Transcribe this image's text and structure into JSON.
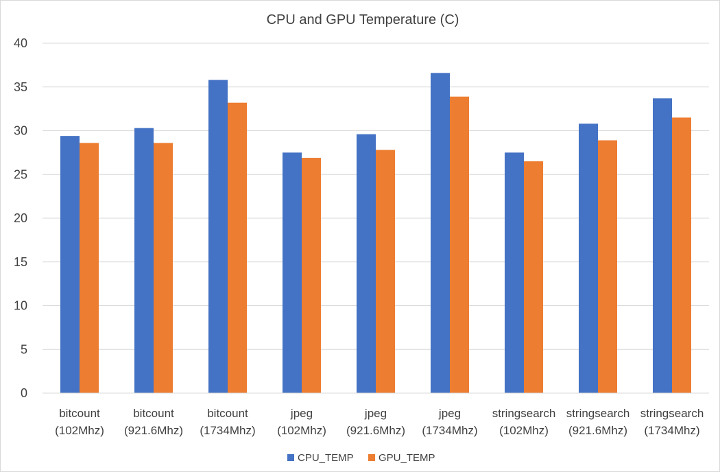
{
  "chart_data": {
    "type": "bar",
    "title": "CPU and GPU Temperature (C)",
    "categories": [
      [
        "bitcount",
        "(102Mhz)"
      ],
      [
        "bitcount",
        "(921.6Mhz)"
      ],
      [
        "bitcount",
        "(1734Mhz)"
      ],
      [
        "jpeg",
        "(102Mhz)"
      ],
      [
        "jpeg",
        "(921.6Mhz)"
      ],
      [
        "jpeg",
        "(1734Mhz)"
      ],
      [
        "stringsearch",
        "(102Mhz)"
      ],
      [
        "stringsearch",
        "(921.6Mhz)"
      ],
      [
        "stringsearch",
        "(1734Mhz)"
      ]
    ],
    "series": [
      {
        "name": "CPU_TEMP",
        "color": "#4472c4",
        "values": [
          29.4,
          30.3,
          35.8,
          27.5,
          29.6,
          36.6,
          27.5,
          30.8,
          33.7
        ]
      },
      {
        "name": "GPU_TEMP",
        "color": "#ed7d31",
        "values": [
          28.6,
          28.6,
          33.2,
          26.9,
          27.8,
          33.9,
          26.5,
          28.9,
          31.5
        ]
      }
    ],
    "xlabel": "",
    "ylabel": "",
    "ylim": [
      0,
      40
    ],
    "yticks": [
      0,
      5,
      10,
      15,
      20,
      25,
      30,
      35,
      40
    ],
    "grid": true,
    "legend_position": "bottom-center"
  }
}
